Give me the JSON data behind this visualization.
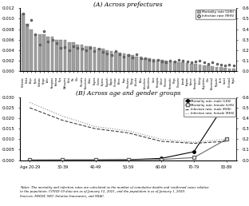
{
  "title_a": "(A) Across prefectures",
  "title_b": "(B) Across age and gender groups",
  "notes": "Notes: The mortality and infection rates are calculated as the number of cumulative deaths and confirmed cases relative\nto the population. COVID-19 data are as of January 12, 2021, and the population is as of January 1, 2020.\nSources: MHLW, NEC Solution Innovators, and MIAC.",
  "prefectures": [
    "Hokkaido",
    "Osaka",
    "Tokyo",
    "Kyoto",
    "Ishikawa",
    "Hyogo",
    "Aichi",
    "Kanagawa",
    "Saitama",
    "Nara",
    "Wakayama",
    "Fukui",
    "Mie",
    "Gifu",
    "Shizuoka",
    "Kumamoto",
    "Chiba",
    "Nagano",
    "Gunma",
    "Toyama",
    "Nagasaki",
    "Niigata",
    "Okinawa",
    "Ehime",
    "Saga",
    "Hiroshima",
    "Miyagi",
    "Fukuoka",
    "Akita",
    "Fukushima",
    "Tokushima",
    "Iwate",
    "Yamagata",
    "Tottori",
    "Shimane",
    "Yamanashi",
    "Shiga",
    "Okayama",
    "Ibaraki",
    "Kagawa",
    "Aomori",
    "Yamaguchi",
    "Tochigi",
    "Kagoshima",
    "Oita",
    "Tokushima2",
    "Miyazaki",
    "Kochi",
    "Iwate2",
    "Okinawa2",
    "Saga2"
  ],
  "mortality_lhs": [
    0.011,
    0.009,
    0.008,
    0.007,
    0.007,
    0.007,
    0.0065,
    0.0065,
    0.006,
    0.006,
    0.006,
    0.0055,
    0.0055,
    0.005,
    0.005,
    0.0048,
    0.0047,
    0.0045,
    0.0043,
    0.0042,
    0.004,
    0.0038,
    0.0037,
    0.0035,
    0.0033,
    0.0032,
    0.003,
    0.0028,
    0.0027,
    0.0025,
    0.0024,
    0.0023,
    0.0022,
    0.0021,
    0.002,
    0.0019,
    0.0018,
    0.0017,
    0.0016,
    0.0015,
    0.0014,
    0.0013,
    0.0012,
    0.0011,
    0.001,
    0.0009,
    0.0008,
    0.0007,
    0.0006,
    0.0005,
    0.0004
  ],
  "infection_rhs": [
    0.55,
    0.44,
    0.49,
    0.35,
    0.25,
    0.38,
    0.28,
    0.3,
    0.27,
    0.22,
    0.23,
    0.2,
    0.24,
    0.22,
    0.21,
    0.2,
    0.22,
    0.19,
    0.21,
    0.18,
    0.17,
    0.15,
    0.19,
    0.16,
    0.14,
    0.15,
    0.13,
    0.16,
    0.12,
    0.12,
    0.11,
    0.1,
    0.11,
    0.09,
    0.08,
    0.1,
    0.09,
    0.11,
    0.1,
    0.09,
    0.08,
    0.09,
    0.1,
    0.08,
    0.07,
    0.08,
    0.07,
    0.06,
    0.05,
    0.06,
    0.05
  ],
  "age_groups": [
    "Age 20-29",
    "30-39",
    "40-49",
    "50-59",
    "60-69",
    "70-79",
    "80-89"
  ],
  "mortality_male": [
    5e-05,
    8e-05,
    0.0001,
    0.0002,
    0.0008,
    0.004,
    0.028
  ],
  "mortality_female": [
    3e-05,
    5e-05,
    7e-05,
    0.00012,
    0.0003,
    0.0012,
    0.01
  ],
  "infection_male_rhs": [
    0.5,
    0.38,
    0.3,
    0.26,
    0.18,
    0.16,
    0.18
  ],
  "infection_female_rhs": [
    0.55,
    0.42,
    0.32,
    0.28,
    0.2,
    0.17,
    0.2
  ],
  "bar_color": "#a0a0a0",
  "bar_edge_color": "#707070",
  "dot_color": "#a0a0a0",
  "line_male_mortality_color": "#000000",
  "line_female_mortality_color": "#606060",
  "line_male_infection_color": "#404040",
  "line_female_infection_color": "#808080",
  "background_color": "#ffffff",
  "lhs_ylim_a": [
    0,
    0.012
  ],
  "rhs_ylim_a": [
    0,
    0.6
  ],
  "lhs_yticks_a": [
    0,
    0.002,
    0.004,
    0.006,
    0.008,
    0.01,
    0.012
  ],
  "rhs_yticks_a": [
    0,
    0.1,
    0.2,
    0.3,
    0.4,
    0.5,
    0.6
  ],
  "lhs_ylim_b": [
    0,
    0.03
  ],
  "rhs_ylim_b": [
    0,
    0.6
  ],
  "lhs_yticks_b": [
    0,
    0.005,
    0.01,
    0.015,
    0.02,
    0.025,
    0.03
  ],
  "rhs_yticks_b": [
    0,
    0.1,
    0.2,
    0.3,
    0.4,
    0.5,
    0.6
  ]
}
